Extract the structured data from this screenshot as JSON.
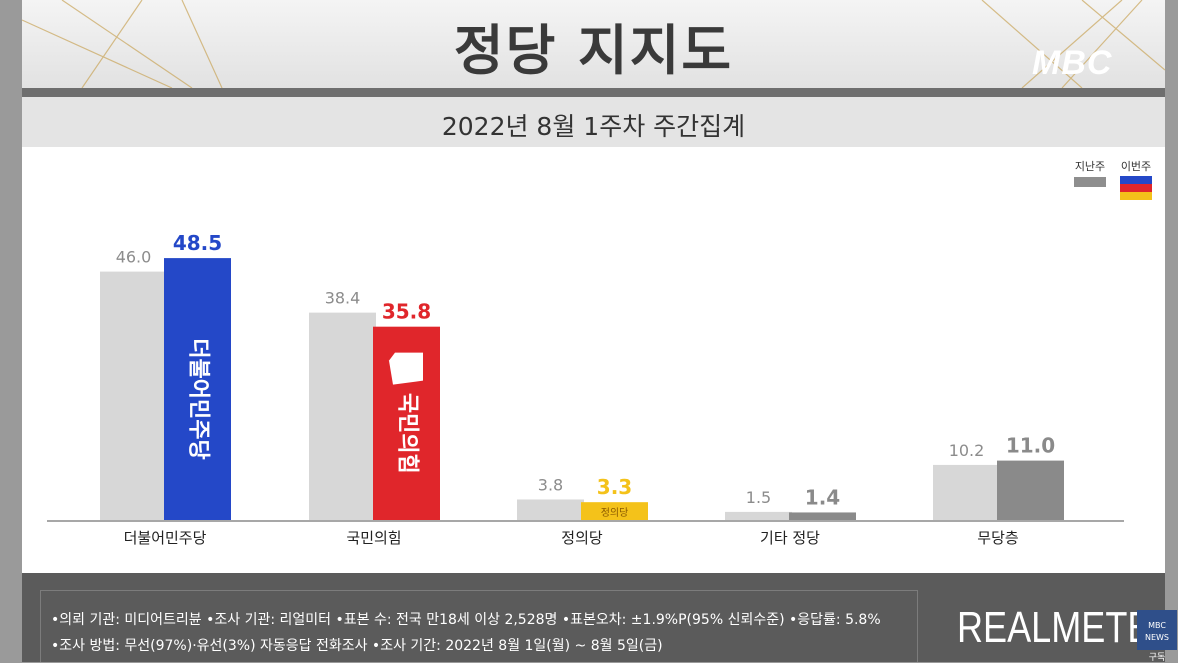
{
  "header": {
    "title": "정당 지지도",
    "broadcaster": "MBC",
    "subtitle": "2022년 8월 1주차 주간집계"
  },
  "legend": {
    "prev_label": "지난주",
    "curr_label": "이번주"
  },
  "colors": {
    "prev_bar": "#d7d7d7",
    "democratic": "#2448c8",
    "ppp": "#e0262b",
    "justice": "#f4c21a",
    "others": "#8a8a8a",
    "prev_value_text": "#8c8c8c"
  },
  "chart_data": {
    "type": "bar",
    "title": "정당 지지도",
    "subtitle": "2022년 8월 1주차 주간집계",
    "categories": [
      "더불어민주당",
      "국민의힘",
      "정의당",
      "기타 정당",
      "무당층"
    ],
    "series": [
      {
        "name": "지난주",
        "values": [
          46.0,
          38.4,
          3.8,
          1.5,
          10.2
        ]
      },
      {
        "name": "이번주",
        "values": [
          48.5,
          35.8,
          3.3,
          1.4,
          11.0
        ]
      }
    ],
    "value_labels_prev": [
      "46.0",
      "38.4",
      "3.8",
      "1.5",
      "10.2"
    ],
    "value_labels_curr": [
      "48.5",
      "35.8",
      "3.3",
      "1.4",
      "11.0"
    ],
    "bar_colors_curr": [
      "#2448c8",
      "#e0262b",
      "#f4c21a",
      "#8a8a8a",
      "#8a8a8a"
    ],
    "value_colors_curr": [
      "#2448c8",
      "#e0262b",
      "#f4c21a",
      "#8a8a8a",
      "#8a8a8a"
    ],
    "bar_inner_labels": [
      "더불어민주당",
      "국민의힘",
      "정의당",
      "",
      ""
    ],
    "ylim": [
      0,
      55
    ],
    "grid": false,
    "legend_position": "top-right"
  },
  "footer": {
    "line1": "•의뢰 기관: 미디어트리뷴  •조사 기관: 리얼미터 •표본 수: 전국 만18세 이상 2,528명 •표본오차: ±1.9%P(95% 신뢰수준) •응답률: 5.8%",
    "line2": "•조사 방법: 무선(97%)·유선(3%) 자동응답 전화조사 •조사 기간: 2022년 8월 1일(월) ~ 8월 5일(금)",
    "brand": "REALMETER",
    "corner_badge": "MBC NEWS",
    "corner_sub": "구독"
  }
}
